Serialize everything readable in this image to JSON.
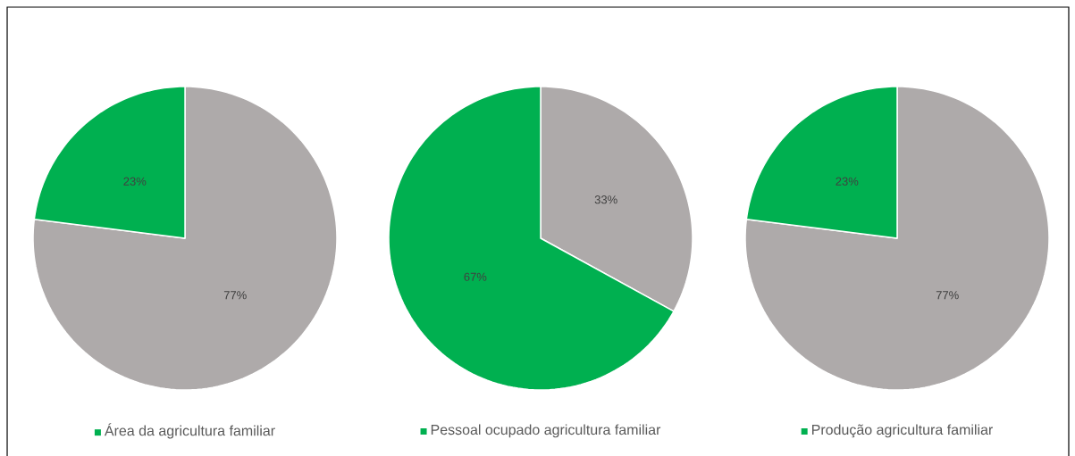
{
  "chart_data": [
    {
      "type": "pie",
      "categories": [
        null,
        "Área da agricultura familiar"
      ],
      "values": [
        77,
        23
      ],
      "colors": [
        "#aeaaaa",
        "#00b050"
      ],
      "value_labels": [
        "77%",
        "23%"
      ],
      "legend": "bottom"
    },
    {
      "type": "pie",
      "categories": [
        null,
        "Pessoal ocupado agricultura familiar"
      ],
      "values": [
        33,
        67
      ],
      "colors": [
        "#aeaaaa",
        "#00b050"
      ],
      "value_labels": [
        "33%",
        "67%"
      ],
      "legend": "bottom"
    },
    {
      "type": "pie",
      "categories": [
        null,
        "Produção agricultura familiar"
      ],
      "values": [
        77,
        23
      ],
      "colors": [
        "#aeaaaa",
        "#00b050"
      ],
      "value_labels": [
        "77%",
        "23%"
      ],
      "legend": "bottom"
    }
  ]
}
